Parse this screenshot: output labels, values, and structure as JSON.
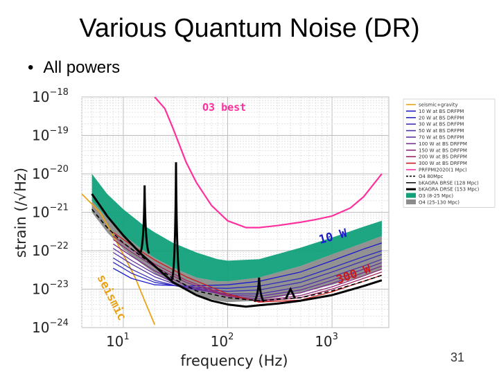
{
  "slide": {
    "title": "Various Quantum Noise (DR)",
    "bullet": "All powers",
    "page_number": "31"
  },
  "colors": {
    "seismic": "#e8a317",
    "o3": "#ff2f9e",
    "band_o3": "#12a07a",
    "band_o4": "#8c8c8c",
    "low_power": "#1a1acc",
    "high_power": "#cc1a1a"
  },
  "chart_data": {
    "type": "line",
    "xscale": "log",
    "yscale": "log",
    "xlim": [
      4,
      3500
    ],
    "ylim": [
      1e-24,
      1e-18
    ],
    "xlabel": "frequency (Hz)",
    "ylabel": "strain (/√Hz)",
    "x_ticks": [
      {
        "value": 10,
        "label": "10",
        "exp": "1"
      },
      {
        "value": 100,
        "label": "10",
        "exp": "2"
      },
      {
        "value": 1000,
        "label": "10",
        "exp": "3"
      }
    ],
    "y_ticks": [
      {
        "value": 1e-18,
        "label": "10",
        "exp": "−18"
      },
      {
        "value": 1e-19,
        "label": "10",
        "exp": "−19"
      },
      {
        "value": 1e-20,
        "label": "10",
        "exp": "−20"
      },
      {
        "value": 1e-21,
        "label": "10",
        "exp": "−21"
      },
      {
        "value": 1e-22,
        "label": "10",
        "exp": "−22"
      },
      {
        "value": 1e-23,
        "label": "10",
        "exp": "−23"
      },
      {
        "value": 1e-24,
        "label": "10",
        "exp": "−24"
      }
    ],
    "grid": true,
    "legend_position": "upper-right, outside plot",
    "annotations": [
      {
        "text": "O3 best",
        "color": "#ff2f9e"
      },
      {
        "text": "10 W",
        "color": "#1a1acc"
      },
      {
        "text": "300 W",
        "color": "#cc1a1a"
      },
      {
        "text": "seismic",
        "color": "#e8a317"
      }
    ],
    "legend": [
      {
        "label": "seismic+gravity",
        "color": "#e8a317",
        "style": "solid"
      },
      {
        "label": "10 W at BS DRFPM",
        "color": "#1a1acc",
        "style": "solid"
      },
      {
        "label": "20 W at BS DRFPM",
        "color": "#2828c0",
        "style": "solid"
      },
      {
        "label": "30 W at BS DRFPM",
        "color": "#3c30b4",
        "style": "solid"
      },
      {
        "label": "50 W at BS DRFPM",
        "color": "#5030a8",
        "style": "solid"
      },
      {
        "label": "70 W at BS DRFPM",
        "color": "#64309c",
        "style": "solid"
      },
      {
        "label": "100 W at BS DRFPM",
        "color": "#782c8c",
        "style": "solid"
      },
      {
        "label": "150 W at BS DRFPM",
        "color": "#8c2a78",
        "style": "solid"
      },
      {
        "label": "200 W at BS DRFPM",
        "color": "#a02460",
        "style": "solid"
      },
      {
        "label": "300 W at BS DRFPM",
        "color": "#cc1a1a",
        "style": "solid"
      },
      {
        "label": "PRFPMI2020(1 Mpc)",
        "color": "#ff2f9e",
        "style": "solid"
      },
      {
        "label": "O4 80Mpc",
        "color": "#000000",
        "style": "dashed"
      },
      {
        "label": "bKAGRA BRSE (128 Mpc)",
        "color": "#111111",
        "style": "solid"
      },
      {
        "label": "bKAGRA DRSE (153 Mpc)",
        "color": "#000000",
        "style": "thick"
      },
      {
        "label": "O3 (8-25 Mpc)",
        "color": "#12a07a",
        "style": "patch"
      },
      {
        "label": "O4 (25-130 Mpc)",
        "color": "#8c8c8c",
        "style": "patch"
      }
    ],
    "series": [
      {
        "name": "seismic+gravity",
        "x": [
          4,
          6,
          8,
          10,
          13,
          16,
          20
        ],
        "y": [
          3e-21,
          1e-21,
          2.5e-22,
          8e-23,
          2e-23,
          5e-24,
          1.2e-24
        ]
      },
      {
        "name": "10 W at BS DRFPM",
        "x": [
          8,
          12,
          20,
          40,
          100,
          200,
          500,
          1000,
          2000,
          3000
        ],
        "y": [
          3.5e-23,
          1.9e-23,
          1.3e-23,
          1.2e-23,
          1.3e-23,
          1.6e-23,
          2.8e-23,
          5.5e-23,
          1.1e-22,
          1.6e-22
        ]
      },
      {
        "name": "20 W at BS DRFPM",
        "x": [
          8,
          12,
          20,
          40,
          100,
          200,
          500,
          1000,
          2000,
          3000
        ],
        "y": [
          5e-23,
          2.6e-23,
          1.5e-23,
          1.1e-23,
          1.05e-23,
          1.2e-23,
          1.9e-23,
          3.6e-23,
          7e-23,
          1e-22
        ]
      },
      {
        "name": "30 W at BS DRFPM",
        "x": [
          8,
          12,
          20,
          40,
          100,
          200,
          500,
          1000,
          2000,
          3000
        ],
        "y": [
          6.5e-23,
          3.3e-23,
          1.7e-23,
          1.05e-23,
          8.8e-24,
          9.5e-24,
          1.5e-23,
          2.8e-23,
          5.4e-23,
          8e-23
        ]
      },
      {
        "name": "50 W at BS DRFPM",
        "x": [
          8,
          12,
          20,
          40,
          100,
          200,
          500,
          1000,
          2000,
          3000
        ],
        "y": [
          9e-23,
          4.5e-23,
          2.1e-23,
          1.05e-23,
          7.5e-24,
          7.5e-24,
          1.15e-23,
          2.1e-23,
          4e-23,
          6e-23
        ]
      },
      {
        "name": "70 W at BS DRFPM",
        "x": [
          8,
          12,
          20,
          40,
          100,
          200,
          500,
          1000,
          2000,
          3000
        ],
        "y": [
          1.15e-22,
          5.6e-23,
          2.5e-23,
          1.1e-23,
          7e-24,
          6.5e-24,
          9.5e-24,
          1.7e-23,
          3.3e-23,
          4.9e-23
        ]
      },
      {
        "name": "100 W at BS DRFPM",
        "x": [
          8,
          12,
          20,
          40,
          100,
          200,
          500,
          1000,
          2000,
          3000
        ],
        "y": [
          1.5e-22,
          7.2e-23,
          3e-23,
          1.25e-23,
          6.6e-24,
          5.6e-24,
          8e-24,
          1.4e-23,
          2.7e-23,
          4e-23
        ]
      },
      {
        "name": "150 W at BS DRFPM",
        "x": [
          8,
          12,
          20,
          40,
          100,
          200,
          500,
          1000,
          2000,
          3000
        ],
        "y": [
          1.95e-22,
          9.2e-23,
          3.8e-23,
          1.5e-23,
          6.6e-24,
          5e-24,
          6.8e-24,
          1.15e-23,
          2.2e-23,
          3.3e-23
        ]
      },
      {
        "name": "200 W at BS DRFPM",
        "x": [
          8,
          12,
          20,
          40,
          100,
          200,
          500,
          1000,
          2000,
          3000
        ],
        "y": [
          2.4e-22,
          1.1e-22,
          4.5e-23,
          1.7e-23,
          6.8e-24,
          4.8e-24,
          6e-24,
          1e-23,
          1.9e-23,
          2.8e-23
        ]
      },
      {
        "name": "300 W at BS DRFPM",
        "x": [
          8,
          12,
          20,
          40,
          100,
          200,
          500,
          1000,
          2000,
          3000
        ],
        "y": [
          3e-22,
          1.4e-22,
          5.7e-23,
          2.1e-23,
          7.5e-24,
          4.6e-24,
          5.2e-24,
          8.5e-24,
          1.6e-23,
          2.3e-23
        ]
      },
      {
        "name": "PRFPMI2020(1 Mpc)",
        "x": [
          20,
          25,
          30,
          40,
          50,
          70,
          100,
          150,
          200,
          300,
          500,
          700,
          1000,
          1500,
          2000,
          3000
        ],
        "y": [
          1e-18,
          5e-19,
          1.5e-19,
          2e-20,
          6e-21,
          1.5e-21,
          6e-22,
          4e-22,
          4e-22,
          4.5e-22,
          5.5e-22,
          6.5e-22,
          8e-22,
          1.3e-21,
          2.5e-21,
          1e-20
        ]
      },
      {
        "name": "O4 80Mpc",
        "x": [
          5,
          7,
          10,
          15,
          20,
          30,
          50,
          100,
          200,
          500,
          1000,
          2000,
          3000
        ],
        "y": [
          1.2e-21,
          4e-22,
          1.6e-22,
          7e-23,
          4e-23,
          1.9e-23,
          9e-24,
          6e-24,
          5e-24,
          6e-24,
          9e-24,
          1.6e-23,
          2.3e-23
        ]
      },
      {
        "name": "bKAGRA DRSE (153 Mpc)",
        "x": [
          5,
          7,
          10,
          15,
          20,
          30,
          50,
          70,
          100,
          150,
          200,
          300,
          500,
          1000,
          2000,
          3000
        ],
        "y": [
          3e-21,
          8e-22,
          2.5e-22,
          8e-23,
          4e-23,
          1.5e-23,
          7e-24,
          5e-24,
          4e-24,
          3.5e-24,
          3.8e-24,
          4.2e-24,
          5e-24,
          7e-24,
          1.2e-23,
          1.7e-23
        ]
      }
    ],
    "bands": [
      {
        "name": "O3 (8-25 Mpc)",
        "x": [
          5,
          7,
          10,
          15,
          20,
          30,
          50,
          80,
          100,
          200,
          500,
          1000,
          2000,
          3000
        ],
        "lower": [
          2e-21,
          7e-22,
          2.6e-22,
          1.1e-22,
          6.5e-23,
          3.6e-23,
          2e-23,
          1.6e-23,
          1.6e-23,
          2e-23,
          4e-23,
          8e-23,
          1.6e-22,
          2.4e-22
        ],
        "upper": [
          1e-20,
          3e-21,
          1.2e-21,
          5e-22,
          3e-22,
          1.6e-22,
          9e-23,
          6e-23,
          5.5e-23,
          6e-23,
          1.2e-22,
          2.2e-22,
          4.2e-22,
          6e-22
        ]
      },
      {
        "name": "O4 (25-130 Mpc)",
        "x": [
          5,
          7,
          10,
          15,
          20,
          30,
          50,
          80,
          100,
          200,
          500,
          1000,
          2000,
          3000
        ],
        "lower": [
          1e-21,
          3e-22,
          1.1e-22,
          4.6e-23,
          2.6e-23,
          1.4e-23,
          7e-24,
          5e-24,
          4.6e-24,
          5e-24,
          8e-24,
          1.3e-23,
          2.2e-23,
          3.2e-23
        ],
        "upper": [
          2e-21,
          7e-22,
          2.6e-22,
          1.1e-22,
          6.5e-23,
          3.6e-23,
          2e-23,
          1.6e-23,
          1.6e-23,
          2e-23,
          4e-23,
          8e-23,
          1.6e-22,
          2.4e-22
        ]
      }
    ],
    "peaks": [
      {
        "x": 16,
        "y": 5e-21
      },
      {
        "x": 32,
        "y": 2e-20
      },
      {
        "x": 200,
        "y": 2e-23
      },
      {
        "x": 400,
        "y": 1e-23
      }
    ]
  }
}
